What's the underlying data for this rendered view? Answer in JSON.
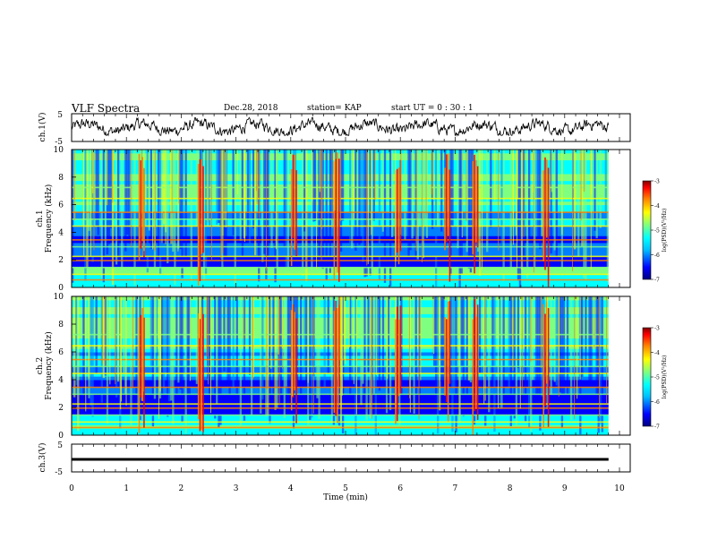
{
  "header": {
    "title": "VLF Spectra",
    "date": "Dec.28, 2018",
    "station": "station= KAP",
    "start": "start  UT =   0 : 30 : 1"
  },
  "chart_data": [
    {
      "type": "line",
      "panel": "ch1-waveform",
      "ylabel": "ch.1(V)",
      "ylim": [
        -5,
        5
      ],
      "yticks": [
        "5",
        "-5"
      ],
      "xlim": [
        0,
        10
      ],
      "note_shape": "dense noise waveform roughly within -2.5..+3 V across 0..9.8 min"
    },
    {
      "type": "heatmap",
      "panel": "ch1-spectrogram",
      "ylabel": "ch.1\nFrequency (kHz)",
      "ylim": [
        0,
        10
      ],
      "yticks": [
        "0",
        "2",
        "4",
        "6",
        "8",
        "10"
      ],
      "xlim": [
        0,
        10
      ],
      "colorbar": {
        "label": "log(PSD)(V²/Hz)",
        "range": [
          -7,
          -3
        ],
        "ticks": [
          "-3",
          "-4",
          "-5",
          "-6",
          "-7"
        ]
      },
      "strong_bursts_min": [
        1.27,
        2.35,
        4.05,
        4.83,
        5.95,
        6.85,
        7.36,
        8.65
      ]
    },
    {
      "type": "heatmap",
      "panel": "ch2-spectrogram",
      "ylabel": "ch.2\nFrequency (kHz)",
      "ylim": [
        0,
        10
      ],
      "yticks": [
        "0",
        "2",
        "4",
        "6",
        "8",
        "10"
      ],
      "xlim": [
        0,
        10
      ],
      "colorbar": {
        "label": "log(PSD)(V²/Hz)",
        "range": [
          -7,
          -3
        ],
        "ticks": [
          "-3",
          "-4",
          "-5",
          "-6",
          "-7"
        ]
      },
      "strong_bursts_min": [
        1.27,
        2.35,
        4.05,
        4.83,
        5.95,
        6.85,
        7.36,
        8.65
      ]
    },
    {
      "type": "line",
      "panel": "ch3-waveform",
      "ylabel": "ch.3(V)",
      "ylim": [
        -5,
        5
      ],
      "yticks": [
        "5",
        "-5"
      ],
      "xlim": [
        0,
        10
      ],
      "x": [
        0,
        9.8
      ],
      "y": [
        -0.5,
        -0.5
      ]
    }
  ],
  "xaxis": {
    "label": "Time (min)",
    "ticks": [
      "0",
      "1",
      "2",
      "3",
      "4",
      "5",
      "6",
      "7",
      "8",
      "9",
      "10"
    ]
  },
  "colormap": [
    "#00007f",
    "#0000ff",
    "#007fff",
    "#00ffff",
    "#7fff7f",
    "#ffff00",
    "#ff7f00",
    "#ff0000",
    "#7f0000"
  ]
}
